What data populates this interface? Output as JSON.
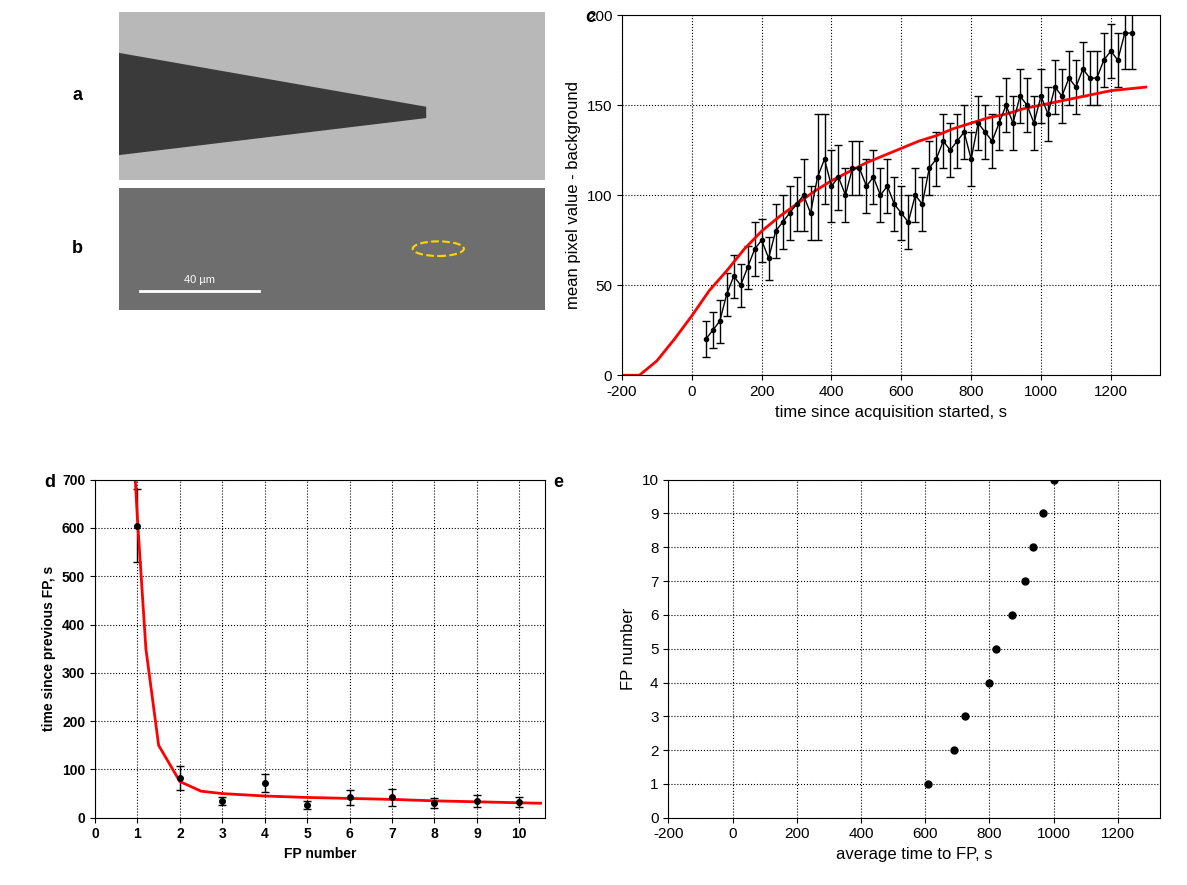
{
  "images": [
    {
      "panel_label": "a"
    },
    {
      "panel_label": "b",
      "scale_bar": "40 µm"
    }
  ],
  "chart_data": [
    {
      "panel_label": "c",
      "type": "line",
      "x_label": "time since acquisition started, s",
      "y_label": "mean pixel value - background",
      "xlim": [
        -200,
        1340
      ],
      "xticks": [
        -200,
        0,
        200,
        400,
        600,
        800,
        1000,
        1200
      ],
      "ylim": [
        0,
        200
      ],
      "yticks": [
        0,
        50,
        100,
        150,
        200
      ],
      "grid": true,
      "series": [
        {
          "type": "line",
          "color": "#000000",
          "marker": "o",
          "x": [
            40,
            60,
            80,
            100,
            120,
            140,
            160,
            180,
            200,
            220,
            240,
            260,
            280,
            300,
            320,
            340,
            360,
            380,
            400,
            420,
            440,
            460,
            480,
            500,
            520,
            540,
            560,
            580,
            600,
            620,
            640,
            660,
            680,
            700,
            720,
            740,
            760,
            780,
            800,
            820,
            840,
            860,
            880,
            900,
            920,
            940,
            960,
            980,
            1000,
            1020,
            1040,
            1060,
            1080,
            1100,
            1120,
            1140,
            1160,
            1180,
            1200,
            1220,
            1240,
            1260
          ],
          "values": [
            20,
            25,
            30,
            45,
            55,
            50,
            60,
            70,
            75,
            65,
            80,
            85,
            90,
            95,
            100,
            90,
            110,
            120,
            105,
            110,
            100,
            115,
            115,
            105,
            110,
            100,
            105,
            95,
            90,
            85,
            100,
            95,
            115,
            120,
            130,
            125,
            130,
            135,
            120,
            140,
            135,
            130,
            140,
            150,
            140,
            155,
            150,
            140,
            155,
            145,
            160,
            155,
            165,
            160,
            170,
            165,
            165,
            175,
            180,
            175,
            190,
            190
          ],
          "errors": [
            10,
            10,
            12,
            12,
            12,
            12,
            12,
            15,
            12,
            12,
            15,
            15,
            15,
            15,
            20,
            15,
            35,
            25,
            20,
            18,
            15,
            15,
            15,
            15,
            15,
            15,
            15,
            15,
            15,
            15,
            15,
            15,
            15,
            15,
            15,
            15,
            15,
            15,
            15,
            15,
            15,
            15,
            15,
            15,
            15,
            15,
            15,
            15,
            15,
            15,
            15,
            15,
            15,
            15,
            15,
            15,
            15,
            15,
            15,
            15,
            20,
            20
          ]
        },
        {
          "type": "line",
          "color": "#ff0000",
          "x": [
            -200,
            -150,
            -100,
            -50,
            0,
            50,
            100,
            150,
            200,
            250,
            300,
            350,
            400,
            450,
            500,
            550,
            600,
            650,
            700,
            750,
            800,
            850,
            900,
            950,
            1000,
            1050,
            1100,
            1150,
            1200,
            1250,
            1300
          ],
          "values": [
            0,
            0,
            8,
            20,
            33,
            47,
            58,
            70,
            80,
            88,
            95,
            102,
            108,
            113,
            118,
            122,
            126,
            130,
            133,
            137,
            140,
            143,
            145,
            148,
            150,
            152,
            154,
            156,
            158,
            159,
            160
          ]
        }
      ]
    },
    {
      "panel_label": "d",
      "type": "scatter",
      "x_label": "FP number",
      "y_label": "time since previous FP, s",
      "xlim": [
        0,
        10.6
      ],
      "xticks": [
        0,
        1,
        2,
        3,
        4,
        5,
        6,
        7,
        8,
        9,
        10
      ],
      "ylim": [
        0,
        700
      ],
      "yticks": [
        0,
        100,
        200,
        300,
        400,
        500,
        600,
        700
      ],
      "grid": true,
      "series": [
        {
          "type": "scatter",
          "color": "#000000",
          "marker": "o",
          "x": [
            1,
            2,
            3,
            4,
            5,
            6,
            7,
            8,
            9,
            10
          ],
          "values": [
            605,
            82,
            35,
            72,
            27,
            42,
            42,
            30,
            35,
            32
          ],
          "errors": [
            75,
            25,
            8,
            18,
            8,
            15,
            18,
            10,
            12,
            10
          ]
        },
        {
          "type": "line",
          "color": "#ff0000",
          "x": [
            0.95,
            1,
            1.2,
            1.5,
            2,
            2.5,
            3,
            4,
            5,
            6,
            7,
            8,
            9,
            10,
            10.5
          ],
          "values": [
            700,
            620,
            350,
            150,
            75,
            55,
            50,
            45,
            42,
            40,
            38,
            35,
            33,
            31,
            30
          ]
        }
      ]
    },
    {
      "panel_label": "e",
      "type": "scatter",
      "x_label": "average time to FP, s",
      "y_label": "FP number",
      "xlim": [
        -200,
        1330
      ],
      "xticks": [
        -200,
        0,
        200,
        400,
        600,
        800,
        1000,
        1200
      ],
      "ylim": [
        0,
        10
      ],
      "yticks": [
        0,
        1,
        2,
        3,
        4,
        5,
        6,
        7,
        8,
        9,
        10
      ],
      "grid": true,
      "series": [
        {
          "type": "scatter",
          "color": "#000000",
          "marker": "o",
          "x": [
            610,
            690,
            725,
            800,
            820,
            870,
            910,
            935,
            968,
            1000
          ],
          "values": [
            1,
            2,
            3,
            4,
            5,
            6,
            7,
            8,
            9,
            10
          ]
        }
      ]
    }
  ]
}
